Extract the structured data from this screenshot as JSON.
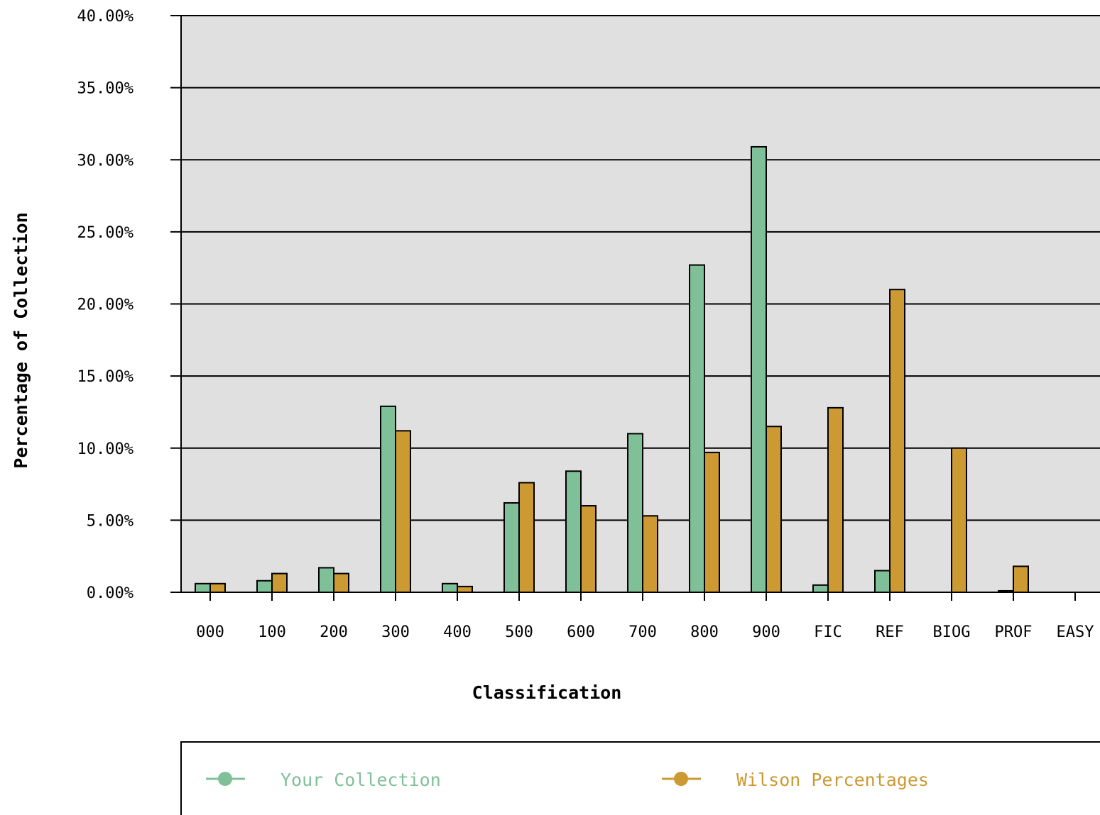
{
  "chart_data": {
    "type": "bar",
    "title": "",
    "xlabel": "Classification",
    "ylabel": "Percentage of Collection",
    "ylim": [
      0,
      40
    ],
    "yticks": [
      "0.00%",
      "5.00%",
      "10.00%",
      "15.00%",
      "20.00%",
      "25.00%",
      "30.00%",
      "35.00%",
      "40.00%"
    ],
    "categories": [
      "000",
      "100",
      "200",
      "300",
      "400",
      "500",
      "600",
      "700",
      "800",
      "900",
      "FIC",
      "REF",
      "BIOG",
      "PROF",
      "EASY"
    ],
    "series": [
      {
        "name": "Your Collection",
        "color": "#80c098",
        "values": [
          0.6,
          0.8,
          1.7,
          12.9,
          0.6,
          6.2,
          8.4,
          11.0,
          22.7,
          30.9,
          0.5,
          1.5,
          0.0,
          0.1,
          0.0
        ]
      },
      {
        "name": "Wilson Percentages",
        "color": "#cc9933",
        "values": [
          0.6,
          1.3,
          1.3,
          11.2,
          0.4,
          7.6,
          6.0,
          5.3,
          9.7,
          11.5,
          12.8,
          21.0,
          10.0,
          1.8,
          0.0
        ]
      }
    ],
    "grid": true,
    "legend_position": "bottom"
  }
}
